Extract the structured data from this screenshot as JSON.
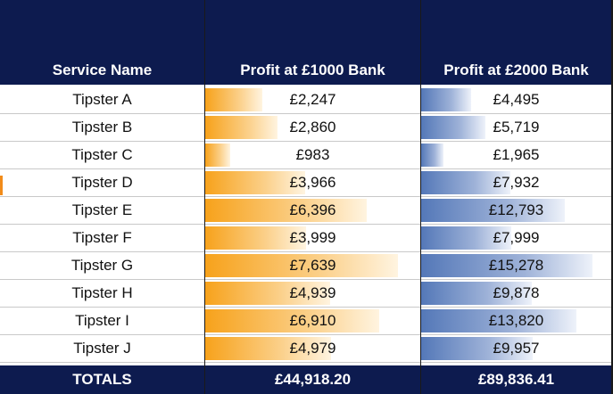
{
  "table": {
    "headers": [
      "Service Name",
      "Profit at £1000 Bank",
      "Profit at £2000 Bank"
    ],
    "rows": [
      {
        "name": "Tipster A",
        "profit_1000": "£2,247",
        "profit_2000": "£4,495",
        "v1000": 2247,
        "v2000": 4495
      },
      {
        "name": "Tipster B",
        "profit_1000": "£2,860",
        "profit_2000": "£5,719",
        "v1000": 2860,
        "v2000": 5719
      },
      {
        "name": "Tipster C",
        "profit_1000": "£983",
        "profit_2000": "£1,965",
        "v1000": 983,
        "v2000": 1965
      },
      {
        "name": "Tipster D",
        "profit_1000": "£3,966",
        "profit_2000": "£7,932",
        "v1000": 3966,
        "v2000": 7932
      },
      {
        "name": "Tipster E",
        "profit_1000": "£6,396",
        "profit_2000": "£12,793",
        "v1000": 6396,
        "v2000": 12793
      },
      {
        "name": "Tipster F",
        "profit_1000": "£3,999",
        "profit_2000": "£7,999",
        "v1000": 3999,
        "v2000": 7999
      },
      {
        "name": "Tipster G",
        "profit_1000": "£7,639",
        "profit_2000": "£15,278",
        "v1000": 7639,
        "v2000": 15278
      },
      {
        "name": "Tipster H",
        "profit_1000": "£4,939",
        "profit_2000": "£9,878",
        "v1000": 4939,
        "v2000": 9878
      },
      {
        "name": "Tipster I",
        "profit_1000": "£6,910",
        "profit_2000": "£13,820",
        "v1000": 6910,
        "v2000": 13820
      },
      {
        "name": "Tipster J",
        "profit_1000": "£4,979",
        "profit_2000": "£9,957",
        "v1000": 4979,
        "v2000": 9957
      }
    ],
    "totals": {
      "label": "TOTALS",
      "profit_1000": "£44,918.20",
      "profit_2000": "£89,836.41"
    }
  },
  "colors": {
    "header_bg": "#0d1b4f",
    "bar_1000": "#f7a21b",
    "bar_2000": "#5478b8"
  }
}
